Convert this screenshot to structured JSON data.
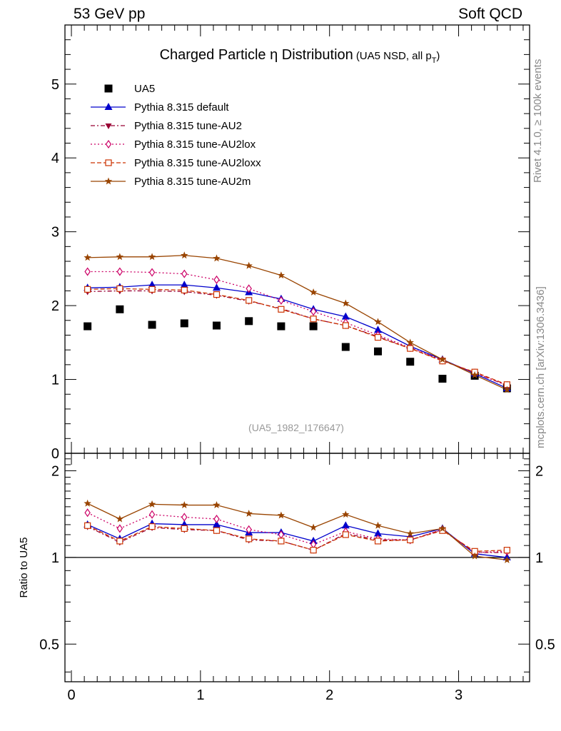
{
  "header": {
    "left": "53 GeV pp",
    "right": "Soft QCD"
  },
  "side_labels": {
    "top": "Rivet 4.1.0, ≥ 100k events",
    "bottom": "mcplots.cern.ch [arXiv:1306.3436]"
  },
  "chart_data": {
    "type": "scatter",
    "title_main": "Charged Particle η Distribution",
    "title_sub": "(UA5 NSD, all p",
    "title_sub_index": "T",
    "title_sub_end": ")",
    "analysis_id": "(UA5_1982_I176647)",
    "ratio_ylabel": "Ratio to UA5",
    "x": [
      0.125,
      0.375,
      0.625,
      0.875,
      1.125,
      1.375,
      1.625,
      1.875,
      2.125,
      2.375,
      2.625,
      2.875,
      3.125,
      3.375
    ],
    "xlim": [
      -0.05,
      3.55
    ],
    "ylim": [
      0,
      5.8
    ],
    "ratio_ylim": [
      0.37,
      2.3
    ],
    "x_ticks": [
      "0",
      "1",
      "2",
      "3"
    ],
    "y_ticks": [
      "1",
      "2",
      "3",
      "4",
      "5"
    ],
    "y_zero_tick": "0",
    "ratio_ticks": [
      "0.5",
      "1",
      "2"
    ],
    "series": [
      {
        "name": "UA5",
        "color": "#000000",
        "marker": "square",
        "line": "none",
        "values": [
          1.72,
          1.95,
          1.74,
          1.76,
          1.73,
          1.79,
          1.72,
          1.72,
          1.44,
          1.38,
          1.24,
          1.01,
          1.05,
          0.88
        ]
      },
      {
        "name": "Pythia 8.315 default",
        "color": "#0000cc",
        "marker": "triangle-up",
        "line": "solid",
        "values": [
          2.24,
          2.25,
          2.28,
          2.28,
          2.24,
          2.18,
          2.09,
          1.95,
          1.85,
          1.67,
          1.45,
          1.27,
          1.08,
          0.88
        ],
        "ratio": [
          1.3,
          1.16,
          1.31,
          1.3,
          1.3,
          1.22,
          1.22,
          1.14,
          1.29,
          1.21,
          1.18,
          1.26,
          1.03,
          1.0
        ]
      },
      {
        "name": "Pythia 8.315 tune-AU2",
        "color": "#990033",
        "marker": "triangle-down",
        "line": "dashdot",
        "values": [
          2.19,
          2.2,
          2.2,
          2.19,
          2.14,
          2.06,
          1.96,
          1.82,
          1.73,
          1.58,
          1.42,
          1.26,
          1.09,
          0.92
        ],
        "ratio": [
          1.28,
          1.13,
          1.27,
          1.25,
          1.24,
          1.15,
          1.14,
          1.06,
          1.21,
          1.15,
          1.15,
          1.25,
          1.04,
          1.04
        ]
      },
      {
        "name": "Pythia 8.315 tune-AU2lox",
        "color": "#cc0066",
        "marker": "diamond-open",
        "line": "dotted",
        "values": [
          2.46,
          2.46,
          2.45,
          2.43,
          2.35,
          2.23,
          2.07,
          1.92,
          1.77,
          1.6,
          1.43,
          1.26,
          1.09,
          0.92
        ],
        "ratio": [
          1.43,
          1.26,
          1.41,
          1.38,
          1.36,
          1.25,
          1.2,
          1.11,
          1.23,
          1.16,
          1.15,
          1.25,
          1.04,
          1.05
        ]
      },
      {
        "name": "Pythia 8.315 tune-AU2loxx",
        "color": "#cc3300",
        "marker": "square-open",
        "line": "dashed",
        "values": [
          2.22,
          2.23,
          2.22,
          2.21,
          2.15,
          2.07,
          1.95,
          1.82,
          1.73,
          1.57,
          1.42,
          1.25,
          1.1,
          0.93
        ],
        "ratio": [
          1.29,
          1.14,
          1.28,
          1.26,
          1.24,
          1.16,
          1.14,
          1.06,
          1.2,
          1.14,
          1.15,
          1.24,
          1.05,
          1.06
        ]
      },
      {
        "name": "Pythia 8.315 tune-AU2m",
        "color": "#994400",
        "marker": "star",
        "line": "solid",
        "values": [
          2.65,
          2.66,
          2.66,
          2.68,
          2.64,
          2.54,
          2.41,
          2.18,
          2.03,
          1.78,
          1.5,
          1.27,
          1.06,
          0.86
        ],
        "ratio": [
          1.54,
          1.36,
          1.53,
          1.52,
          1.52,
          1.42,
          1.4,
          1.27,
          1.41,
          1.29,
          1.21,
          1.26,
          1.01,
          0.98
        ]
      }
    ]
  }
}
